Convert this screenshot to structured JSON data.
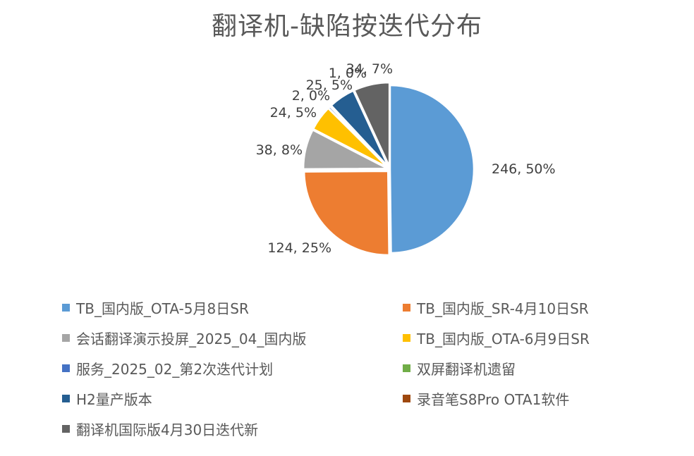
{
  "chart_data": {
    "type": "pie",
    "title": "翻译机-缺陷按迭代分布",
    "legend_position": "bottom",
    "slices": [
      {
        "name": "TB_国内版_OTA-5月8日SR",
        "value": 246,
        "label": "246, 50%",
        "color": "#5B9BD5"
      },
      {
        "name": "TB_国内版_SR-4月10日SR",
        "value": 124,
        "label": "124, 25%",
        "color": "#ED7D31"
      },
      {
        "name": "会话翻译演示投屏_2025_04_国内版",
        "value": 38,
        "label": "38, 8%",
        "color": "#A5A5A5"
      },
      {
        "name": "TB_国内版_OTA-6月9日SR",
        "value": 24,
        "label": "24, 5%",
        "color": "#FFC000"
      },
      {
        "name": "服务_2025_02_第2次迭代计划",
        "value": 2,
        "label": "2, 0%",
        "color": "#4472C4"
      },
      {
        "name": "双屏翻译机遗留",
        "value": 1,
        "label": "1, 0%",
        "color": "#70AD47"
      },
      {
        "name": "H2量产版本",
        "value": 25,
        "label": "25, 5%",
        "color": "#255E91"
      },
      {
        "name": "录音笔S8Pro OTA1软件",
        "value": 0,
        "label": "",
        "color": "#9E480E"
      },
      {
        "name": "翻译机国际版4月30日迭代新",
        "value": 34,
        "label": "34, 7%",
        "color": "#636363"
      }
    ]
  }
}
